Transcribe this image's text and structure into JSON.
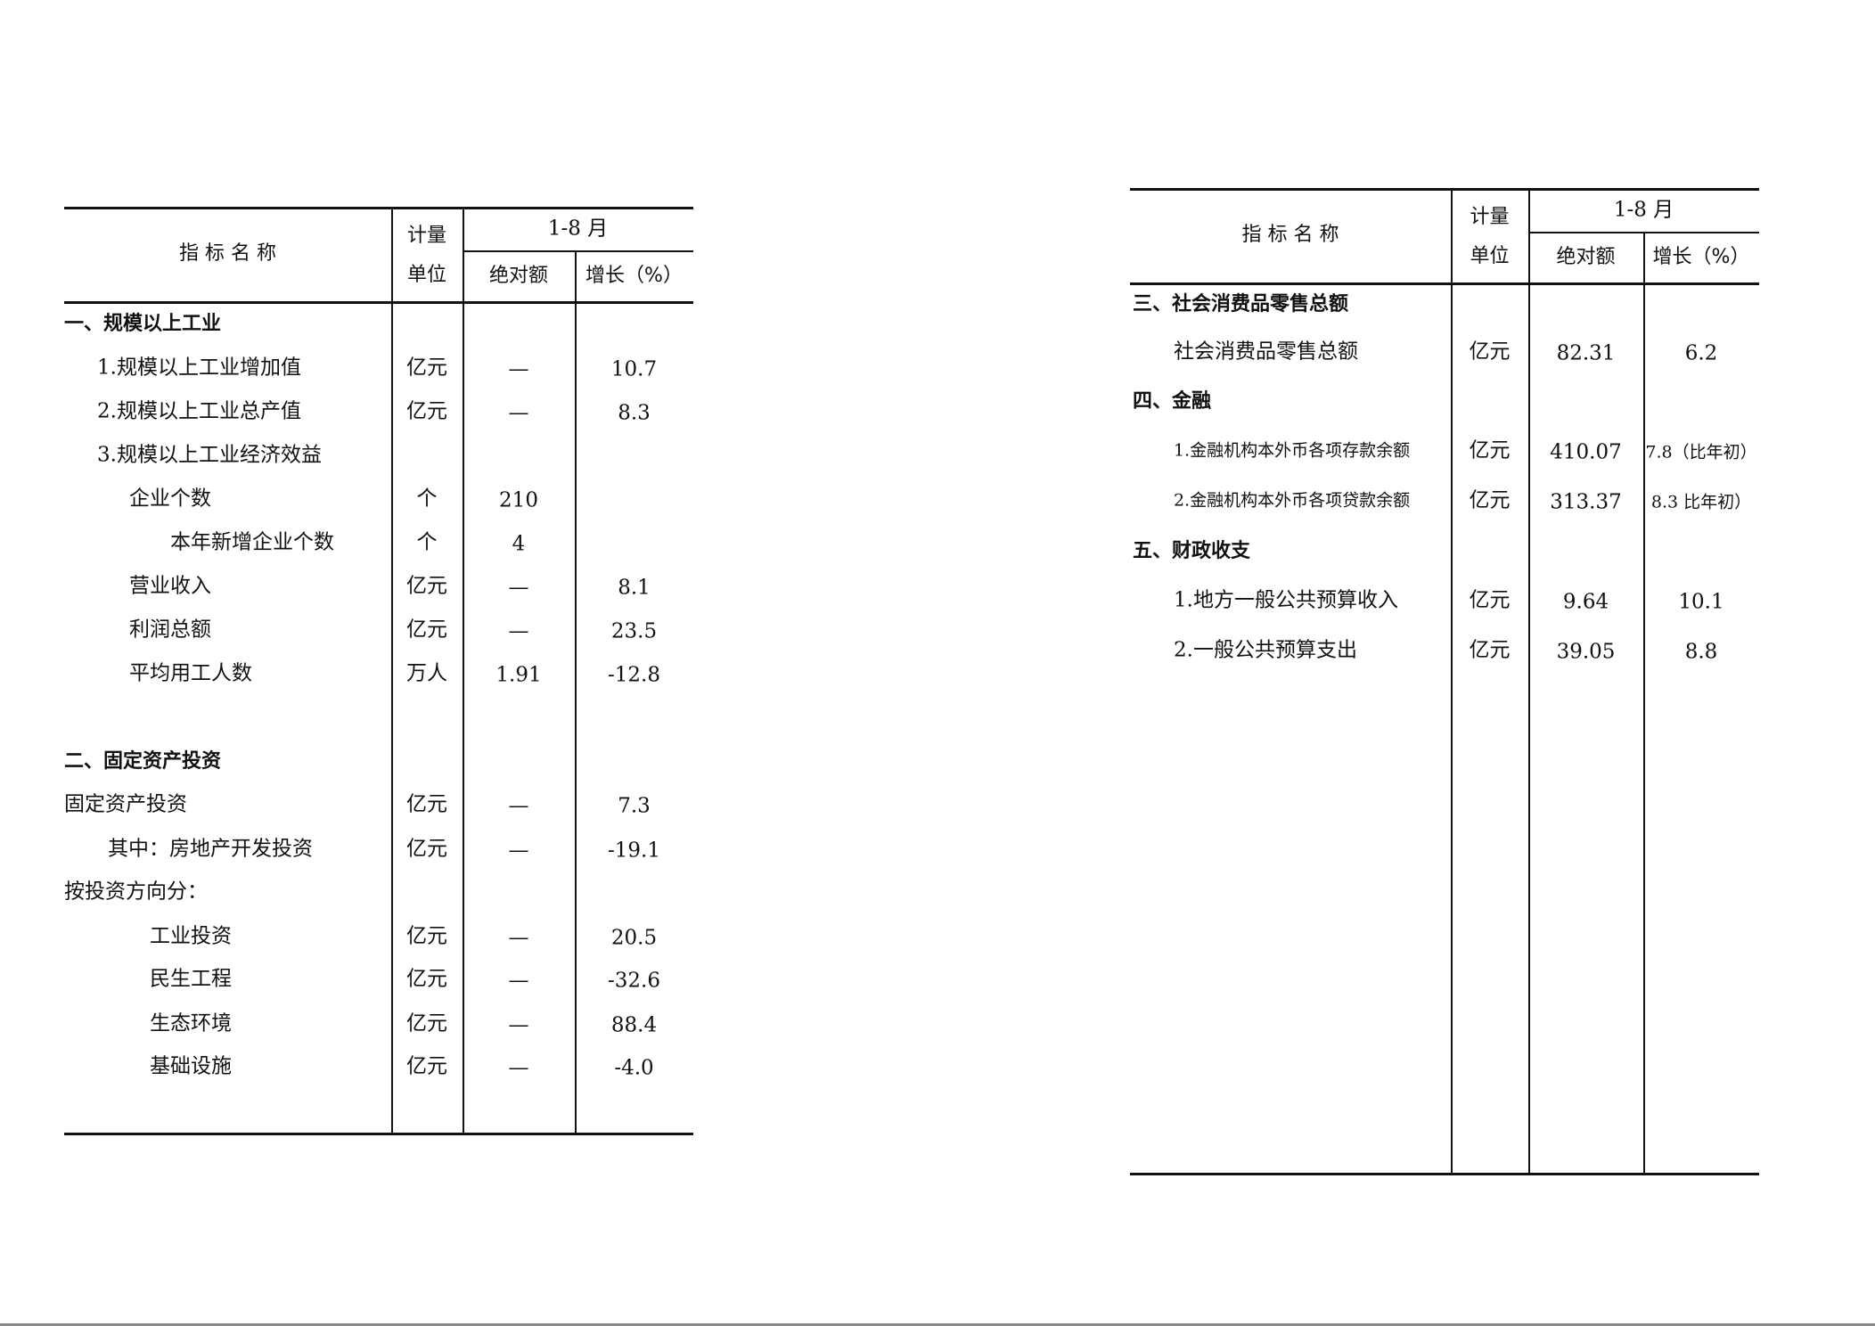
{
  "left_table": {
    "header": {
      "name": "指 标 名 称",
      "unit": "计量\n单位",
      "unit_top": "计量",
      "unit_bottom": "单位",
      "period": "1-8 月",
      "abs": "绝对额",
      "growth": "增长（%）"
    },
    "rows": [
      {
        "name": "一、规模以上工业",
        "level": 0,
        "section": true,
        "unit": "",
        "abs": "",
        "growth": ""
      },
      {
        "name": "1.规模以上工业增加值",
        "level": 1,
        "unit": "亿元",
        "abs": "—",
        "growth": "10.7"
      },
      {
        "name": "2.规模以上工业总产值",
        "level": 1,
        "unit": "亿元",
        "abs": "—",
        "growth": "8.3"
      },
      {
        "name": "3.规模以上工业经济效益",
        "level": 1,
        "unit": "",
        "abs": "",
        "growth": ""
      },
      {
        "name": "企业个数",
        "level": 2,
        "unit": "个",
        "abs": "210",
        "growth": ""
      },
      {
        "name": "本年新增企业个数",
        "level": 3,
        "unit": "个",
        "abs": "4",
        "growth": ""
      },
      {
        "name": "营业收入",
        "level": 2,
        "unit": "亿元",
        "abs": "—",
        "growth": "8.1"
      },
      {
        "name": "利润总额",
        "level": 2,
        "unit": "亿元",
        "abs": "—",
        "growth": "23.5"
      },
      {
        "name": "平均用工人数",
        "level": 2,
        "unit": "万人",
        "abs": "1.91",
        "growth": "-12.8"
      },
      {
        "name": "二、固定资产投资",
        "level": 0,
        "section": true,
        "unit": "",
        "abs": "",
        "growth": ""
      },
      {
        "name": "固定资产投资",
        "level": 4,
        "unit": "亿元",
        "abs": "—",
        "growth": "7.3"
      },
      {
        "name": "其中：房地产开发投资",
        "level": 5,
        "unit": "亿元",
        "abs": "—",
        "growth": "-19.1"
      },
      {
        "name": "按投资方向分：",
        "level": 4,
        "unit": "",
        "abs": "",
        "growth": ""
      },
      {
        "name": "工业投资",
        "level": 6,
        "unit": "亿元",
        "abs": "—",
        "growth": "20.5"
      },
      {
        "name": "民生工程",
        "level": 6,
        "unit": "亿元",
        "abs": "—",
        "growth": "-32.6"
      },
      {
        "name": "生态环境",
        "level": 6,
        "unit": "亿元",
        "abs": "—",
        "growth": "88.4"
      },
      {
        "name": "基础设施",
        "level": 6,
        "unit": "亿元",
        "abs": "—",
        "growth": "-4.0"
      }
    ]
  },
  "right_table": {
    "header": {
      "name": "指 标 名 称",
      "unit_top": "计量",
      "unit_bottom": "单位",
      "period": "1-8 月",
      "abs": "绝对额",
      "growth": "增长（%）"
    },
    "rows": [
      {
        "name": "三、社会消费品零售总额",
        "level": 0,
        "section": true,
        "unit": "",
        "abs": "",
        "growth": ""
      },
      {
        "name": "社会消费品零售总额",
        "level": 1,
        "unit": "亿元",
        "abs": "82.31",
        "growth": "6.2"
      },
      {
        "name": "四、金融",
        "level": 0,
        "section": true,
        "unit": "",
        "abs": "",
        "growth": ""
      },
      {
        "name": "1.金融机构本外币各项存款余额",
        "level": 1,
        "small": true,
        "unit": "亿元",
        "abs": "410.07",
        "growth": "7.8（比年初）"
      },
      {
        "name": "2.金融机构本外币各项贷款余额",
        "level": 1,
        "small": true,
        "unit": "亿元",
        "abs": "313.37",
        "growth": "8.3 比年初）"
      },
      {
        "name": "五、财政收支",
        "level": 0,
        "section": true,
        "unit": "",
        "abs": "",
        "growth": ""
      },
      {
        "name": "1.地方一般公共预算收入",
        "level": 1,
        "unit": "亿元",
        "abs": "9.64",
        "growth": "10.1"
      },
      {
        "name": "2.一般公共预算支出",
        "level": 1,
        "unit": "亿元",
        "abs": "39.05",
        "growth": "8.8"
      }
    ]
  }
}
